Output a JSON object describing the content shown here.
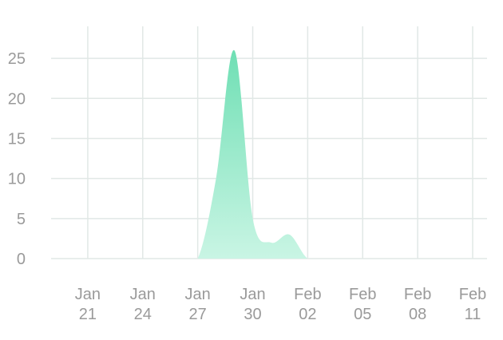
{
  "chart_data": {
    "type": "area",
    "title": "",
    "xlabel": "",
    "ylabel": "",
    "ylim": [
      0,
      29
    ],
    "yticks": [
      0,
      5,
      10,
      15,
      20,
      25
    ],
    "xticks": [
      {
        "date": "2021-01-21",
        "month": "Jan",
        "day": "21"
      },
      {
        "date": "2021-01-24",
        "month": "Jan",
        "day": "24"
      },
      {
        "date": "2021-01-27",
        "month": "Jan",
        "day": "27"
      },
      {
        "date": "2021-01-30",
        "month": "Jan",
        "day": "30"
      },
      {
        "date": "2021-02-02",
        "month": "Feb",
        "day": "02"
      },
      {
        "date": "2021-02-05",
        "month": "Feb",
        "day": "05"
      },
      {
        "date": "2021-02-08",
        "month": "Feb",
        "day": "08"
      },
      {
        "date": "2021-02-11",
        "month": "Feb",
        "day": "11"
      }
    ],
    "xlim": [
      "2021-01-19",
      "2021-02-11"
    ],
    "grid": true,
    "series": [
      {
        "color": "#7fe3bd",
        "points": [
          {
            "x": "2021-01-19",
            "y": 0
          },
          {
            "x": "2021-01-20",
            "y": 0
          },
          {
            "x": "2021-01-21",
            "y": 0
          },
          {
            "x": "2021-01-22",
            "y": 0
          },
          {
            "x": "2021-01-23",
            "y": 0
          },
          {
            "x": "2021-01-24",
            "y": 0
          },
          {
            "x": "2021-01-25",
            "y": 0
          },
          {
            "x": "2021-01-26",
            "y": 0
          },
          {
            "x": "2021-01-27",
            "y": 0
          },
          {
            "x": "2021-01-28",
            "y": 10
          },
          {
            "x": "2021-01-29",
            "y": 26
          },
          {
            "x": "2021-01-30",
            "y": 5
          },
          {
            "x": "2021-01-31",
            "y": 2
          },
          {
            "x": "2021-02-01",
            "y": 3
          },
          {
            "x": "2021-02-02",
            "y": 0
          },
          {
            "x": "2021-02-03",
            "y": 0
          },
          {
            "x": "2021-02-04",
            "y": 0
          },
          {
            "x": "2021-02-05",
            "y": 0
          },
          {
            "x": "2021-02-06",
            "y": 0
          },
          {
            "x": "2021-02-07",
            "y": 0
          },
          {
            "x": "2021-02-08",
            "y": 0
          },
          {
            "x": "2021-02-09",
            "y": 0
          },
          {
            "x": "2021-02-10",
            "y": 0
          },
          {
            "x": "2021-02-11",
            "y": 0
          }
        ]
      }
    ]
  }
}
